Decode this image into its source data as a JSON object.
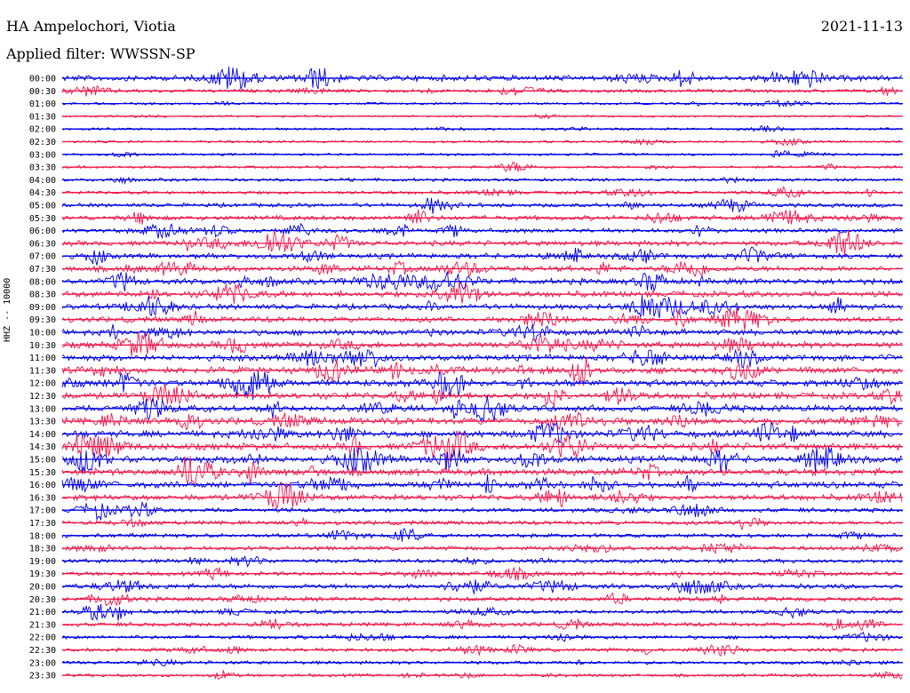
{
  "header": {
    "station": "HA Ampelochori, Viotia",
    "date": "2021-11-13",
    "filter": "Applied filter: WWSSN-SP",
    "channel": "HHZ -- 10000"
  },
  "chart_data": {
    "type": "line",
    "title": "HA Ampelochori, Viotia",
    "subtitle": "Applied filter: WWSSN-SP",
    "ylabel": "HHZ -- 10000",
    "xlabel": "",
    "grid": false,
    "colors": [
      "#0000e6",
      "#f0164a"
    ],
    "row_labels": [
      "00:00",
      "00:30",
      "01:00",
      "01:30",
      "02:00",
      "02:30",
      "03:00",
      "03:30",
      "04:00",
      "04:30",
      "05:00",
      "05:30",
      "06:00",
      "06:30",
      "07:00",
      "07:30",
      "08:00",
      "08:30",
      "09:00",
      "09:30",
      "10:00",
      "10:30",
      "11:00",
      "11:30",
      "12:00",
      "12:30",
      "13:00",
      "13:30",
      "14:00",
      "14:30",
      "15:00",
      "15:30",
      "16:00",
      "16:30",
      "17:00",
      "17:30",
      "18:00",
      "18:30",
      "19:00",
      "19:30",
      "20:00",
      "20:30",
      "21:00",
      "21:30",
      "22:00",
      "22:30",
      "23:00",
      "23:30"
    ],
    "activity_level": [
      0.7,
      0.35,
      0.2,
      0.15,
      0.2,
      0.2,
      0.2,
      0.25,
      0.3,
      0.35,
      0.45,
      0.55,
      0.5,
      0.6,
      0.6,
      0.65,
      0.7,
      0.7,
      0.65,
      0.65,
      0.7,
      0.75,
      0.75,
      0.8,
      0.8,
      0.8,
      0.8,
      0.85,
      0.85,
      0.85,
      0.85,
      0.85,
      0.8,
      0.7,
      0.5,
      0.45,
      0.45,
      0.45,
      0.45,
      0.45,
      0.6,
      0.5,
      0.45,
      0.45,
      0.4,
      0.4,
      0.35,
      0.3
    ]
  }
}
